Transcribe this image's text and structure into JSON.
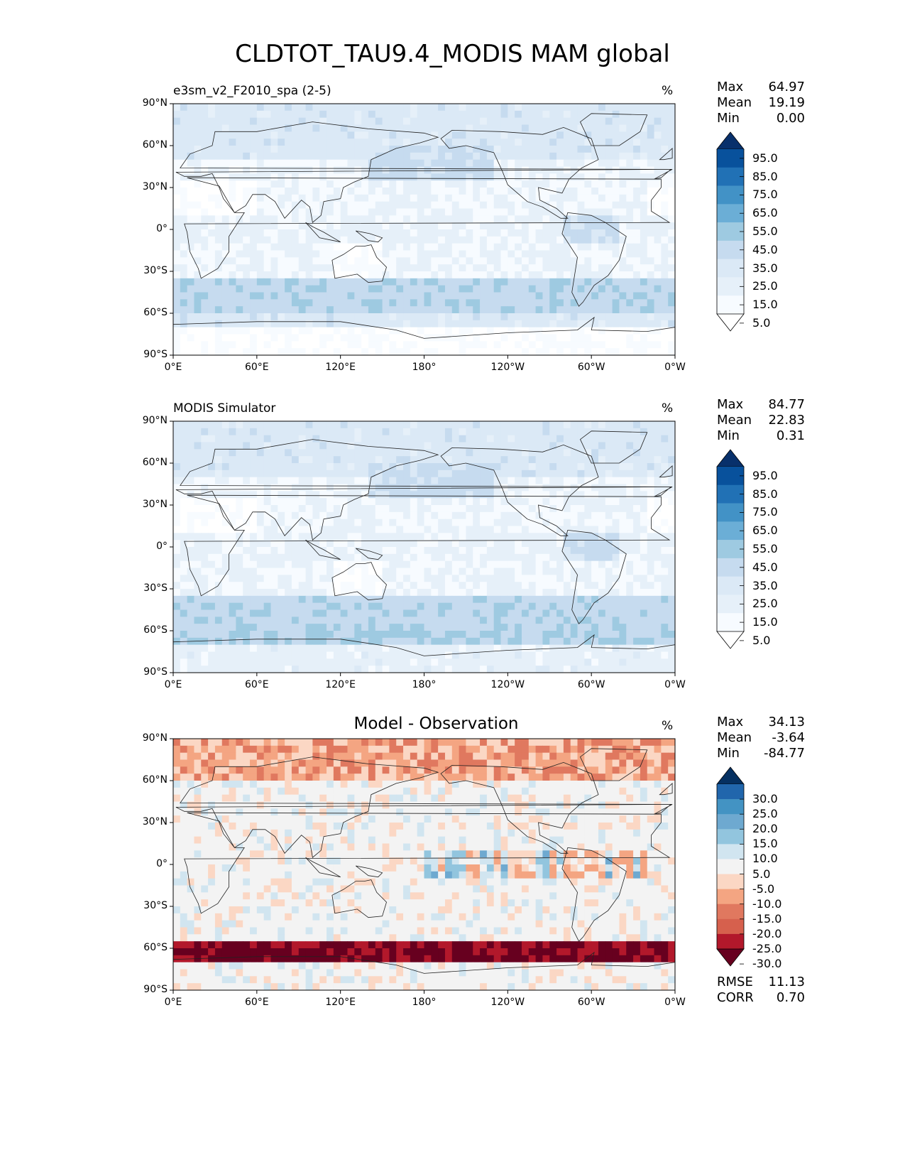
{
  "figure_title": "CLDTOT_TAU9.4_MODIS MAM global",
  "x_ticks": [
    "0°E",
    "60°E",
    "120°E",
    "180°",
    "120°W",
    "60°W",
    "0°W"
  ],
  "y_ticks": [
    "90°N",
    "60°N",
    "30°N",
    "0°",
    "30°S",
    "60°S",
    "90°S"
  ],
  "panels": [
    {
      "id": "test",
      "title": "e3sm_v2_F2010_spa (2-5)",
      "title_style": "left",
      "unit": "%",
      "stats": [
        {
          "label": "Max",
          "value": "64.97"
        },
        {
          "label": "Mean",
          "value": "19.19"
        },
        {
          "label": "Min",
          "value": "0.00"
        }
      ],
      "colorbar_labels": [
        "95.0",
        "85.0",
        "75.0",
        "65.0",
        "55.0",
        "45.0",
        "35.0",
        "25.0",
        "15.0",
        "5.0"
      ],
      "colorbar_colors": [
        "#08306b",
        "#08519c",
        "#2171b5",
        "#4292c6",
        "#6baed6",
        "#9ecae1",
        "#c6dbef",
        "#dbe9f6",
        "#e6f0f9",
        "#f7fbff",
        "#ffffff"
      ]
    },
    {
      "id": "ref",
      "title": "MODIS Simulator",
      "title_style": "left",
      "unit": "%",
      "stats": [
        {
          "label": "Max",
          "value": "84.77"
        },
        {
          "label": "Mean",
          "value": "22.83"
        },
        {
          "label": "Min",
          "value": "0.31"
        }
      ],
      "colorbar_labels": [
        "95.0",
        "85.0",
        "75.0",
        "65.0",
        "55.0",
        "45.0",
        "35.0",
        "25.0",
        "15.0",
        "5.0"
      ],
      "colorbar_colors": [
        "#08306b",
        "#08519c",
        "#2171b5",
        "#4292c6",
        "#6baed6",
        "#9ecae1",
        "#c6dbef",
        "#dbe9f6",
        "#e6f0f9",
        "#f7fbff",
        "#ffffff"
      ]
    },
    {
      "id": "diff",
      "title": "Model - Observation",
      "title_style": "center",
      "unit": "%",
      "stats": [
        {
          "label": "Max",
          "value": "34.13"
        },
        {
          "label": "Mean",
          "value": "-3.64"
        },
        {
          "label": "Min",
          "value": "-84.77"
        }
      ],
      "metrics": [
        {
          "label": "RMSE",
          "value": "11.13"
        },
        {
          "label": "CORR",
          "value": "0.70"
        }
      ],
      "colorbar_labels": [
        "30.0",
        "25.0",
        "20.0",
        "15.0",
        "10.0",
        "5.0",
        "-5.0",
        "-10.0",
        "-15.0",
        "-20.0",
        "-25.0",
        "-30.0"
      ],
      "colorbar_colors": [
        "#053061",
        "#2166ac",
        "#4393c3",
        "#6ea9d0",
        "#92c5de",
        "#d1e5f0",
        "#f3f3f3",
        "#fbd7c4",
        "#f4a582",
        "#e0785f",
        "#d6604d",
        "#b2182b",
        "#67001f"
      ]
    }
  ]
}
